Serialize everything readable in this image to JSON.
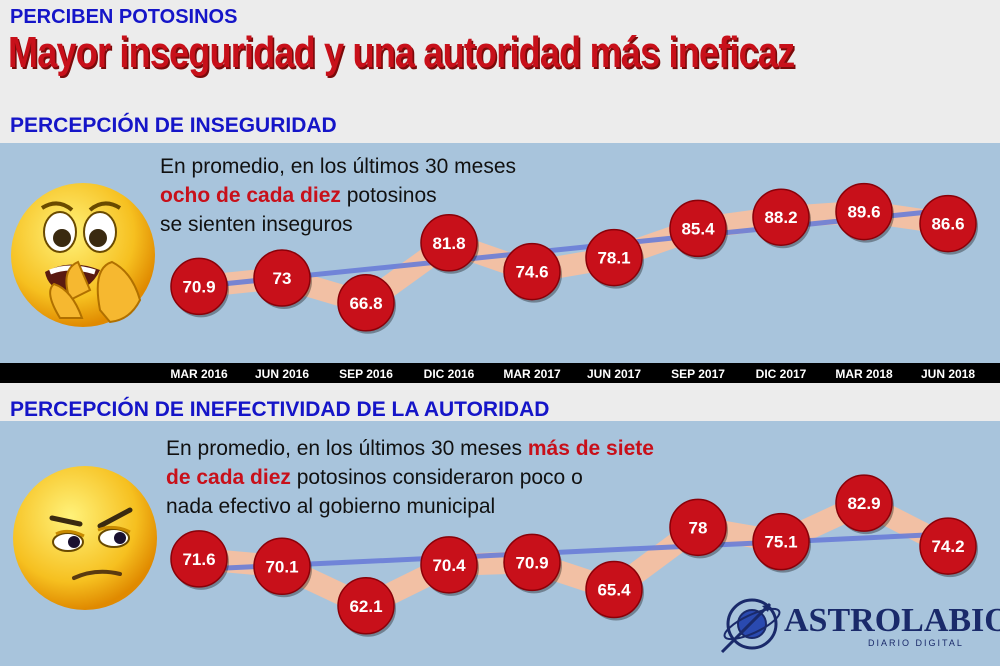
{
  "kicker": "PERCIBEN POTOSINOS",
  "headline": "Mayor inseguridad y una autoridad más ineficaz",
  "section1": {
    "title": "PERCEPCIÓN DE INSEGURIDAD",
    "note_line1": "En promedio, en los últimos 30 meses",
    "note_line2_hl": "ocho de cada diez",
    "note_line2_rest": " potosinos",
    "note_line3": "se sienten inseguros"
  },
  "section2": {
    "title": "PERCEPCIÓN DE INEFECTIVIDAD DE LA AUTORIDAD",
    "note_line1_a": "En promedio, en los últimos 30 meses ",
    "note_line1_hl": "más de siete",
    "note_line2_hl": "de cada diez",
    "note_line2_rest": " potosinos consideraron poco o",
    "note_line3": "nada efectivo al gobierno municipal"
  },
  "logo": {
    "name": "ASTROLABIO",
    "sub": "DIARIO DIGITAL"
  },
  "colors": {
    "marker": "#c8101a",
    "band": "#f5c0a0",
    "trend": "#6a7ed8",
    "title": "#1515c8",
    "headline": "#c8101a"
  },
  "icons": [
    "worried-face-emoji",
    "skeptical-face-emoji",
    "astrolabe-icon"
  ],
  "chart_data": [
    {
      "type": "line",
      "title": "PERCEPCIÓN DE INSEGURIDAD",
      "categories": [
        "MAR 2016",
        "JUN 2016",
        "SEP 2016",
        "DIC 2016",
        "MAR 2017",
        "JUN 2017",
        "SEP 2017",
        "DIC 2017",
        "MAR 2018",
        "JUN 2018"
      ],
      "values": [
        70.9,
        73,
        66.8,
        81.8,
        74.6,
        78.1,
        85.4,
        88.2,
        89.6,
        86.6
      ],
      "trend": [
        70.9,
        89.6
      ],
      "ylim": [
        60,
        95
      ]
    },
    {
      "type": "line",
      "title": "PERCEPCIÓN DE INEFECTIVIDAD DE LA AUTORIDAD",
      "categories": [
        "MAR 2016",
        "JUN 2016",
        "SEP 2016",
        "DIC 2016",
        "MAR 2017",
        "JUN 2017",
        "SEP 2017",
        "DIC 2017",
        "MAR 2018",
        "JUN 2018"
      ],
      "values": [
        71.6,
        70.1,
        62.1,
        70.4,
        70.9,
        65.4,
        78,
        75.1,
        82.9,
        74.2
      ],
      "trend": [
        69.5,
        76.5
      ],
      "ylim": [
        58,
        88
      ]
    }
  ]
}
